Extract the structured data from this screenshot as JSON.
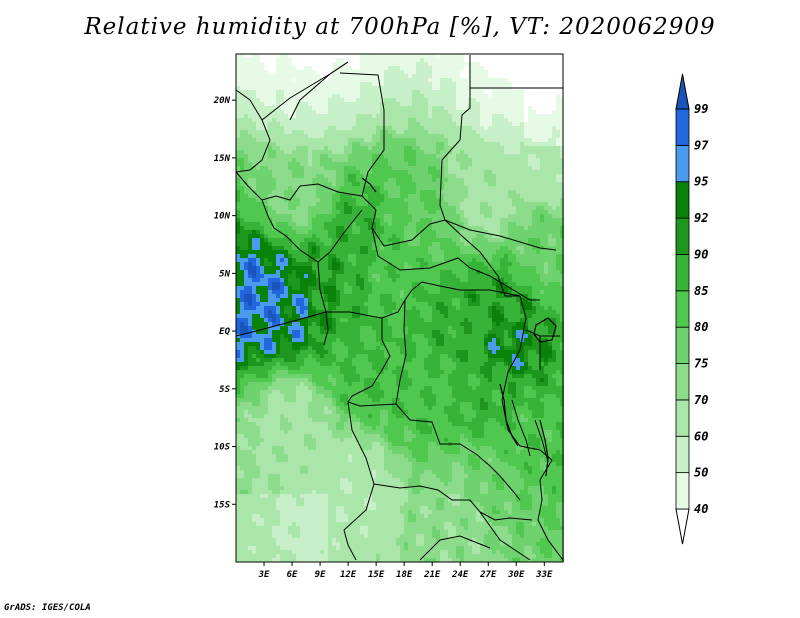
{
  "title": "Relative humidity at 700hPa [%], VT: 2020062909",
  "credit": "GrADS: IGES/COLA",
  "map": {
    "lon_range": [
      0,
      35
    ],
    "lat_range": [
      -20,
      24
    ],
    "lat_ticks": [
      {
        "value": 20,
        "label": "20N"
      },
      {
        "value": 15,
        "label": "15N"
      },
      {
        "value": 10,
        "label": "10N"
      },
      {
        "value": 5,
        "label": "5N"
      },
      {
        "value": 0,
        "label": "EQ"
      },
      {
        "value": -5,
        "label": "5S"
      },
      {
        "value": -10,
        "label": "10S"
      },
      {
        "value": -15,
        "label": "15S"
      }
    ],
    "lon_ticks": [
      {
        "value": 3,
        "label": "3E"
      },
      {
        "value": 6,
        "label": "6E"
      },
      {
        "value": 9,
        "label": "9E"
      },
      {
        "value": 12,
        "label": "12E"
      },
      {
        "value": 15,
        "label": "15E"
      },
      {
        "value": 18,
        "label": "18E"
      },
      {
        "value": 21,
        "label": "21E"
      },
      {
        "value": 24,
        "label": "24E"
      },
      {
        "value": 27,
        "label": "27E"
      },
      {
        "value": 30,
        "label": "30E"
      },
      {
        "value": 33,
        "label": "33E"
      }
    ]
  },
  "colorbar": {
    "levels": [
      "40",
      "50",
      "60",
      "70",
      "75",
      "80",
      "85",
      "90",
      "92",
      "95",
      "97",
      "99"
    ],
    "colors": [
      "#ffffff",
      "#e6fae6",
      "#c8f0c8",
      "#aae6aa",
      "#8cdc8c",
      "#6ed26e",
      "#50c850",
      "#37b437",
      "#1e961e",
      "#0a820a",
      "#4a9aee",
      "#2266dd",
      "#1a55bb"
    ]
  },
  "fields": {
    "moisture_centers": [
      {
        "lon": 2.5,
        "lat": 3.0,
        "value": 97
      },
      {
        "lon": 1.0,
        "lat": 2.5,
        "value": 96
      },
      {
        "lon": 5.5,
        "lat": 2.0,
        "value": 95
      },
      {
        "lon": 9.5,
        "lat": 4.0,
        "value": 91
      },
      {
        "lon": 12.5,
        "lat": 8.5,
        "value": 88
      },
      {
        "lon": 12.0,
        "lat": 4.5,
        "value": 88
      },
      {
        "lon": 16.0,
        "lat": 5.0,
        "value": 83
      },
      {
        "lon": 14.0,
        "lat": -3.0,
        "value": 85
      },
      {
        "lon": 19.5,
        "lat": 10.0,
        "value": 80
      },
      {
        "lon": 24.0,
        "lat": 0.0,
        "value": 88
      },
      {
        "lon": 28.5,
        "lat": 2.0,
        "value": 90
      },
      {
        "lon": 29.0,
        "lat": -1.5,
        "value": 93
      },
      {
        "lon": 27.0,
        "lat": -5.5,
        "value": 87
      },
      {
        "lon": 20.5,
        "lat": -5.0,
        "value": 84
      },
      {
        "lon": 31.0,
        "lat": -9.5,
        "value": 83
      },
      {
        "lon": 27.5,
        "lat": -13.0,
        "value": 78
      },
      {
        "lon": 24.0,
        "lat": -16.0,
        "value": 72
      },
      {
        "lon": 33.0,
        "lat": 7.0,
        "value": 78
      },
      {
        "lon": 27.0,
        "lat": 12.0,
        "value": 68
      },
      {
        "lon": 33.0,
        "lat": 15.5,
        "value": 62
      },
      {
        "lon": 7.0,
        "lat": 12.0,
        "value": 74
      },
      {
        "lon": 6.0,
        "lat": -8.0,
        "value": 68
      },
      {
        "lon": 12.0,
        "lat": -14.0,
        "value": 62
      },
      {
        "lon": 8.0,
        "lat": 20.0,
        "value": 60
      },
      {
        "lon": 30.0,
        "lat": 18.5,
        "value": 56
      }
    ]
  }
}
